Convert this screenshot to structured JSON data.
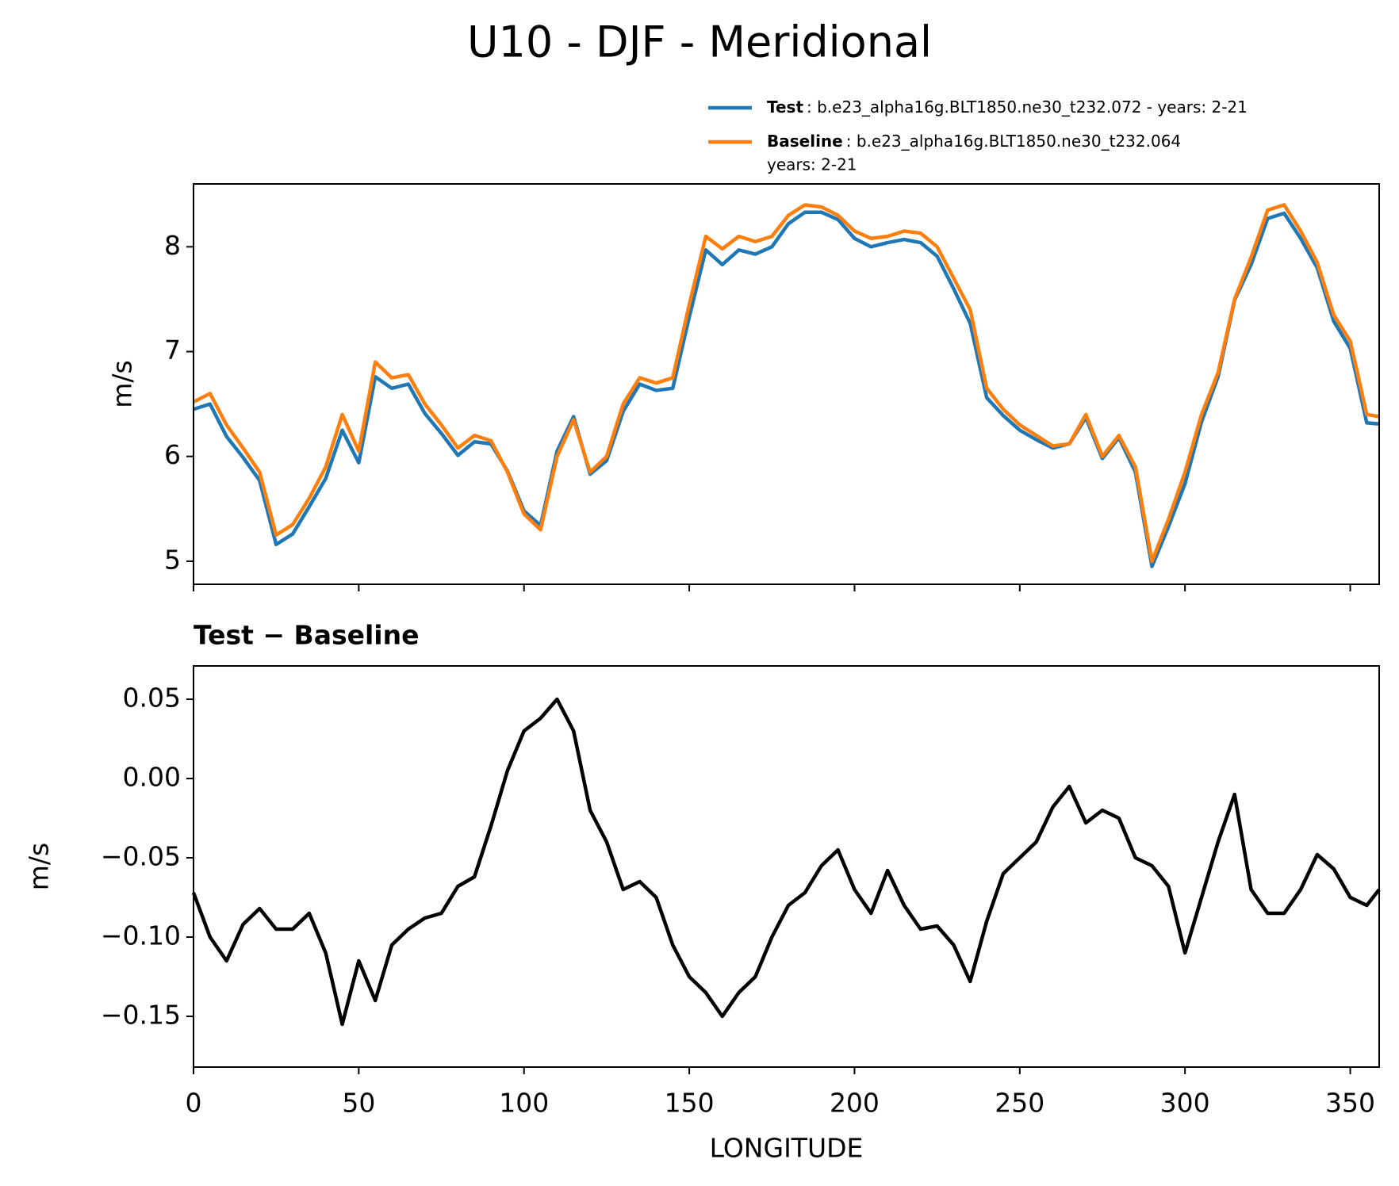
{
  "chart_data": [
    {
      "type": "line",
      "title": "U10 - DJF - Meridional",
      "ylabel": "m/s",
      "x": [
        0,
        5,
        10,
        15,
        20,
        25,
        30,
        35,
        40,
        45,
        50,
        55,
        60,
        65,
        70,
        75,
        80,
        85,
        90,
        95,
        100,
        105,
        110,
        115,
        120,
        125,
        130,
        135,
        140,
        145,
        150,
        155,
        160,
        165,
        170,
        175,
        180,
        185,
        190,
        195,
        200,
        205,
        210,
        215,
        220,
        225,
        230,
        235,
        240,
        245,
        250,
        255,
        260,
        265,
        270,
        275,
        280,
        285,
        290,
        295,
        300,
        305,
        310,
        315,
        320,
        325,
        330,
        335,
        340,
        345,
        350,
        355,
        358.75
      ],
      "series": [
        {
          "name": "Test",
          "label_lines": [
            ": b.e23_alpha16g.BLT1850.ne30_t232.072 - years: 2-21"
          ],
          "color": "#1f77b4",
          "values": [
            6.45,
            6.5,
            6.19,
            5.99,
            5.77,
            5.16,
            5.26,
            5.52,
            5.79,
            6.25,
            5.94,
            6.76,
            6.65,
            6.69,
            6.41,
            6.22,
            6.01,
            6.14,
            6.12,
            5.86,
            5.48,
            5.34,
            6.05,
            6.38,
            5.83,
            5.96,
            6.43,
            6.69,
            6.63,
            6.65,
            7.33,
            7.97,
            7.83,
            7.97,
            7.93,
            8.0,
            8.22,
            8.33,
            8.33,
            8.26,
            8.08,
            8.0,
            8.04,
            8.07,
            8.04,
            7.91,
            7.6,
            7.27,
            6.56,
            6.39,
            6.25,
            6.16,
            6.08,
            6.12,
            6.37,
            5.98,
            6.18,
            5.85,
            4.95,
            5.33,
            5.74,
            6.33,
            6.76,
            7.49,
            7.83,
            8.27,
            8.32,
            8.08,
            7.8,
            7.29,
            7.03,
            6.32,
            6.31
          ]
        },
        {
          "name": "Baseline",
          "label_lines": [
            ": b.e23_alpha16g.BLT1850.ne30_t232.064",
            "years: 2-21"
          ],
          "color": "#ff7f0e",
          "values": [
            6.52,
            6.6,
            6.3,
            6.08,
            5.85,
            5.25,
            5.35,
            5.6,
            5.9,
            6.4,
            6.05,
            6.9,
            6.75,
            6.78,
            6.5,
            6.3,
            6.08,
            6.2,
            6.15,
            5.85,
            5.45,
            5.3,
            6.0,
            6.35,
            5.85,
            6.0,
            6.5,
            6.75,
            6.7,
            6.75,
            7.45,
            8.1,
            7.98,
            8.1,
            8.05,
            8.1,
            8.3,
            8.4,
            8.38,
            8.3,
            8.15,
            8.08,
            8.1,
            8.15,
            8.13,
            8.0,
            7.7,
            7.4,
            6.65,
            6.45,
            6.3,
            6.2,
            6.1,
            6.12,
            6.4,
            6.0,
            6.2,
            5.9,
            5.0,
            5.4,
            5.85,
            6.4,
            6.8,
            7.5,
            7.9,
            8.35,
            8.4,
            8.15,
            7.85,
            7.35,
            7.1,
            6.4,
            6.38
          ]
        }
      ],
      "xlim": [
        0,
        358.75
      ],
      "xticks": [
        0,
        50,
        100,
        150,
        200,
        250,
        300,
        350
      ],
      "ylim": [
        4.78,
        8.6
      ],
      "yticks": [
        5,
        6,
        7,
        8
      ]
    },
    {
      "type": "line",
      "title": "Test − Baseline",
      "xlabel": "LONGITUDE",
      "ylabel": "m/s",
      "x": [
        0,
        5,
        10,
        15,
        20,
        25,
        30,
        35,
        40,
        45,
        50,
        55,
        60,
        65,
        70,
        75,
        80,
        85,
        90,
        95,
        100,
        105,
        110,
        115,
        120,
        125,
        130,
        135,
        140,
        145,
        150,
        155,
        160,
        165,
        170,
        175,
        180,
        185,
        190,
        195,
        200,
        205,
        210,
        215,
        220,
        225,
        230,
        235,
        240,
        245,
        250,
        255,
        260,
        265,
        270,
        275,
        280,
        285,
        290,
        295,
        300,
        305,
        310,
        315,
        320,
        325,
        330,
        335,
        340,
        345,
        350,
        355,
        358.75
      ],
      "color": "#000000",
      "values": [
        -0.072,
        -0.1,
        -0.115,
        -0.092,
        -0.082,
        -0.095,
        -0.095,
        -0.085,
        -0.11,
        -0.155,
        -0.115,
        -0.14,
        -0.105,
        -0.095,
        -0.088,
        -0.085,
        -0.068,
        -0.062,
        -0.03,
        0.005,
        0.03,
        0.038,
        0.05,
        0.03,
        -0.02,
        -0.04,
        -0.07,
        -0.065,
        -0.075,
        -0.105,
        -0.125,
        -0.135,
        -0.15,
        -0.135,
        -0.125,
        -0.1,
        -0.08,
        -0.072,
        -0.055,
        -0.045,
        -0.07,
        -0.085,
        -0.058,
        -0.08,
        -0.095,
        -0.093,
        -0.105,
        -0.128,
        -0.09,
        -0.06,
        -0.05,
        -0.04,
        -0.018,
        -0.005,
        -0.028,
        -0.02,
        -0.025,
        -0.05,
        -0.055,
        -0.068,
        -0.11,
        -0.075,
        -0.04,
        -0.01,
        -0.07,
        -0.085,
        -0.085,
        -0.07,
        -0.048,
        -0.057,
        -0.075,
        -0.08,
        -0.07
      ],
      "xlim": [
        0,
        358.75
      ],
      "xticks": [
        0,
        50,
        100,
        150,
        200,
        250,
        300,
        350
      ],
      "ylim": [
        -0.182,
        0.071
      ],
      "yticks": [
        {
          "value": 0.05,
          "label": "0.05"
        },
        {
          "value": 0,
          "label": "0.00"
        },
        {
          "value": -0.05,
          "label": "−0.05"
        },
        {
          "value": -0.1,
          "label": "−0.10"
        },
        {
          "value": -0.15,
          "label": "−0.15"
        }
      ]
    }
  ]
}
